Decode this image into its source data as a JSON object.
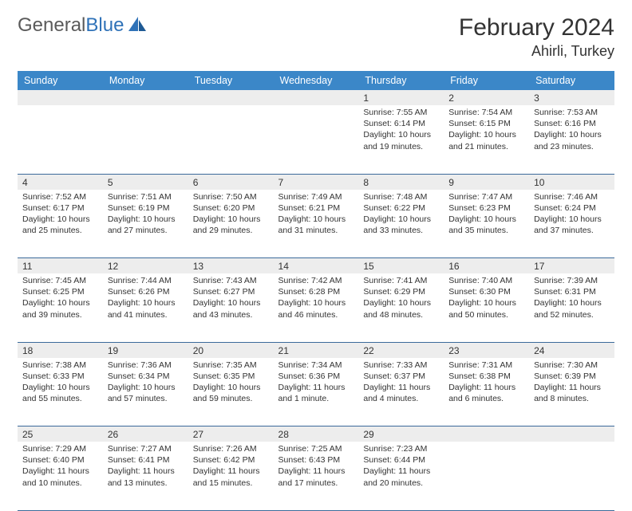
{
  "brand": {
    "word1": "General",
    "word2": "Blue"
  },
  "title": "February 2024",
  "location": "Ahirli, Turkey",
  "header_bg": "#3b87c8",
  "days_of_week": [
    "Sunday",
    "Monday",
    "Tuesday",
    "Wednesday",
    "Thursday",
    "Friday",
    "Saturday"
  ],
  "weeks": [
    [
      null,
      null,
      null,
      null,
      {
        "n": "1",
        "sr": "7:55 AM",
        "ss": "6:14 PM",
        "dl": "10 hours and 19 minutes."
      },
      {
        "n": "2",
        "sr": "7:54 AM",
        "ss": "6:15 PM",
        "dl": "10 hours and 21 minutes."
      },
      {
        "n": "3",
        "sr": "7:53 AM",
        "ss": "6:16 PM",
        "dl": "10 hours and 23 minutes."
      }
    ],
    [
      {
        "n": "4",
        "sr": "7:52 AM",
        "ss": "6:17 PM",
        "dl": "10 hours and 25 minutes."
      },
      {
        "n": "5",
        "sr": "7:51 AM",
        "ss": "6:19 PM",
        "dl": "10 hours and 27 minutes."
      },
      {
        "n": "6",
        "sr": "7:50 AM",
        "ss": "6:20 PM",
        "dl": "10 hours and 29 minutes."
      },
      {
        "n": "7",
        "sr": "7:49 AM",
        "ss": "6:21 PM",
        "dl": "10 hours and 31 minutes."
      },
      {
        "n": "8",
        "sr": "7:48 AM",
        "ss": "6:22 PM",
        "dl": "10 hours and 33 minutes."
      },
      {
        "n": "9",
        "sr": "7:47 AM",
        "ss": "6:23 PM",
        "dl": "10 hours and 35 minutes."
      },
      {
        "n": "10",
        "sr": "7:46 AM",
        "ss": "6:24 PM",
        "dl": "10 hours and 37 minutes."
      }
    ],
    [
      {
        "n": "11",
        "sr": "7:45 AM",
        "ss": "6:25 PM",
        "dl": "10 hours and 39 minutes."
      },
      {
        "n": "12",
        "sr": "7:44 AM",
        "ss": "6:26 PM",
        "dl": "10 hours and 41 minutes."
      },
      {
        "n": "13",
        "sr": "7:43 AM",
        "ss": "6:27 PM",
        "dl": "10 hours and 43 minutes."
      },
      {
        "n": "14",
        "sr": "7:42 AM",
        "ss": "6:28 PM",
        "dl": "10 hours and 46 minutes."
      },
      {
        "n": "15",
        "sr": "7:41 AM",
        "ss": "6:29 PM",
        "dl": "10 hours and 48 minutes."
      },
      {
        "n": "16",
        "sr": "7:40 AM",
        "ss": "6:30 PM",
        "dl": "10 hours and 50 minutes."
      },
      {
        "n": "17",
        "sr": "7:39 AM",
        "ss": "6:31 PM",
        "dl": "10 hours and 52 minutes."
      }
    ],
    [
      {
        "n": "18",
        "sr": "7:38 AM",
        "ss": "6:33 PM",
        "dl": "10 hours and 55 minutes."
      },
      {
        "n": "19",
        "sr": "7:36 AM",
        "ss": "6:34 PM",
        "dl": "10 hours and 57 minutes."
      },
      {
        "n": "20",
        "sr": "7:35 AM",
        "ss": "6:35 PM",
        "dl": "10 hours and 59 minutes."
      },
      {
        "n": "21",
        "sr": "7:34 AM",
        "ss": "6:36 PM",
        "dl": "11 hours and 1 minute."
      },
      {
        "n": "22",
        "sr": "7:33 AM",
        "ss": "6:37 PM",
        "dl": "11 hours and 4 minutes."
      },
      {
        "n": "23",
        "sr": "7:31 AM",
        "ss": "6:38 PM",
        "dl": "11 hours and 6 minutes."
      },
      {
        "n": "24",
        "sr": "7:30 AM",
        "ss": "6:39 PM",
        "dl": "11 hours and 8 minutes."
      }
    ],
    [
      {
        "n": "25",
        "sr": "7:29 AM",
        "ss": "6:40 PM",
        "dl": "11 hours and 10 minutes."
      },
      {
        "n": "26",
        "sr": "7:27 AM",
        "ss": "6:41 PM",
        "dl": "11 hours and 13 minutes."
      },
      {
        "n": "27",
        "sr": "7:26 AM",
        "ss": "6:42 PM",
        "dl": "11 hours and 15 minutes."
      },
      {
        "n": "28",
        "sr": "7:25 AM",
        "ss": "6:43 PM",
        "dl": "11 hours and 17 minutes."
      },
      {
        "n": "29",
        "sr": "7:23 AM",
        "ss": "6:44 PM",
        "dl": "11 hours and 20 minutes."
      },
      null,
      null
    ]
  ],
  "labels": {
    "sunrise": "Sunrise: ",
    "sunset": "Sunset: ",
    "daylight": "Daylight: "
  }
}
